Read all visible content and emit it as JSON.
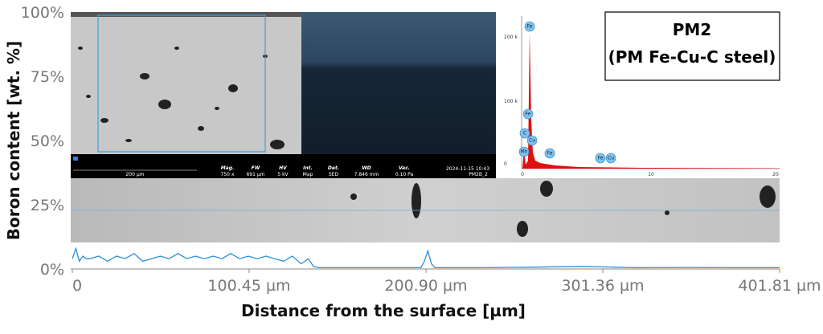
{
  "chart_data": {
    "type": "line",
    "xlabel": "Distance from the surface [µm]",
    "ylabel": "Boron content [wt. %]",
    "x": [
      0,
      2,
      4,
      6,
      8,
      10,
      15,
      20,
      25,
      30,
      35,
      40,
      45,
      50,
      55,
      60,
      65,
      70,
      75,
      80,
      85,
      90,
      95,
      100,
      105,
      110,
      115,
      120,
      125,
      130,
      134,
      137,
      140,
      150,
      170,
      190,
      198,
      200,
      202,
      204,
      206,
      210,
      230,
      260,
      290,
      320,
      350,
      380,
      401.81
    ],
    "series": [
      {
        "color": "#2b8fd6",
        "values": [
          4,
          8,
          3,
          5,
          4,
          4,
          5,
          3,
          5,
          4,
          6,
          3,
          4,
          5,
          4,
          6,
          4,
          5,
          4,
          5,
          4,
          6,
          4,
          5,
          4,
          5,
          4,
          3,
          5,
          2,
          4,
          1,
          0.5,
          0.5,
          0.5,
          0.5,
          0.5,
          3,
          7,
          2,
          0.5,
          0.5,
          0.5,
          0.7,
          1,
          0.5,
          0.6,
          0.5,
          0.5
        ]
      }
    ],
    "xlim": [
      0,
      401.81
    ],
    "xticks": [
      0,
      {
        "value": 100.45,
        "label": "100.45 µm"
      },
      {
        "value": 200.9,
        "label": "200.90 µm"
      },
      {
        "value": 301.36,
        "label": "301.36 µm"
      },
      {
        "value": 401.81,
        "label": "401.81 µm"
      }
    ],
    "ylim": [
      0,
      100
    ],
    "yticks": [
      {
        "value": 0,
        "label": "0%"
      },
      {
        "value": 25,
        "label": "25%"
      },
      {
        "value": 50,
        "label": "50%"
      },
      {
        "value": 75,
        "label": "75%"
      },
      {
        "value": 100,
        "label": "100%"
      }
    ],
    "grid": false,
    "annotation": [
      "PM2",
      "(PM Fe-Cu-C steel)"
    ]
  },
  "image_texts": {
    "scale_bar": "200 µm",
    "info_headers": [
      "Mag.",
      "FW",
      "HV",
      "Int.",
      "Det.",
      "WD",
      "Vac."
    ],
    "info_values": [
      "750 x",
      "691 µm",
      "5 kV",
      "Map",
      "SED",
      "7.846 mm",
      "0.10 Pa"
    ],
    "timestamp": "2024-11-15 10:43",
    "sample": "PM2B_2",
    "spectrum_y": [
      "200 k",
      "100 k",
      "0"
    ],
    "spectrum_x": [
      "0",
      "10",
      "20"
    ],
    "peaks": [
      "Fe",
      "Fe",
      "C",
      "Cu",
      "Mn",
      "Fe",
      "Fe",
      "Cu"
    ]
  }
}
